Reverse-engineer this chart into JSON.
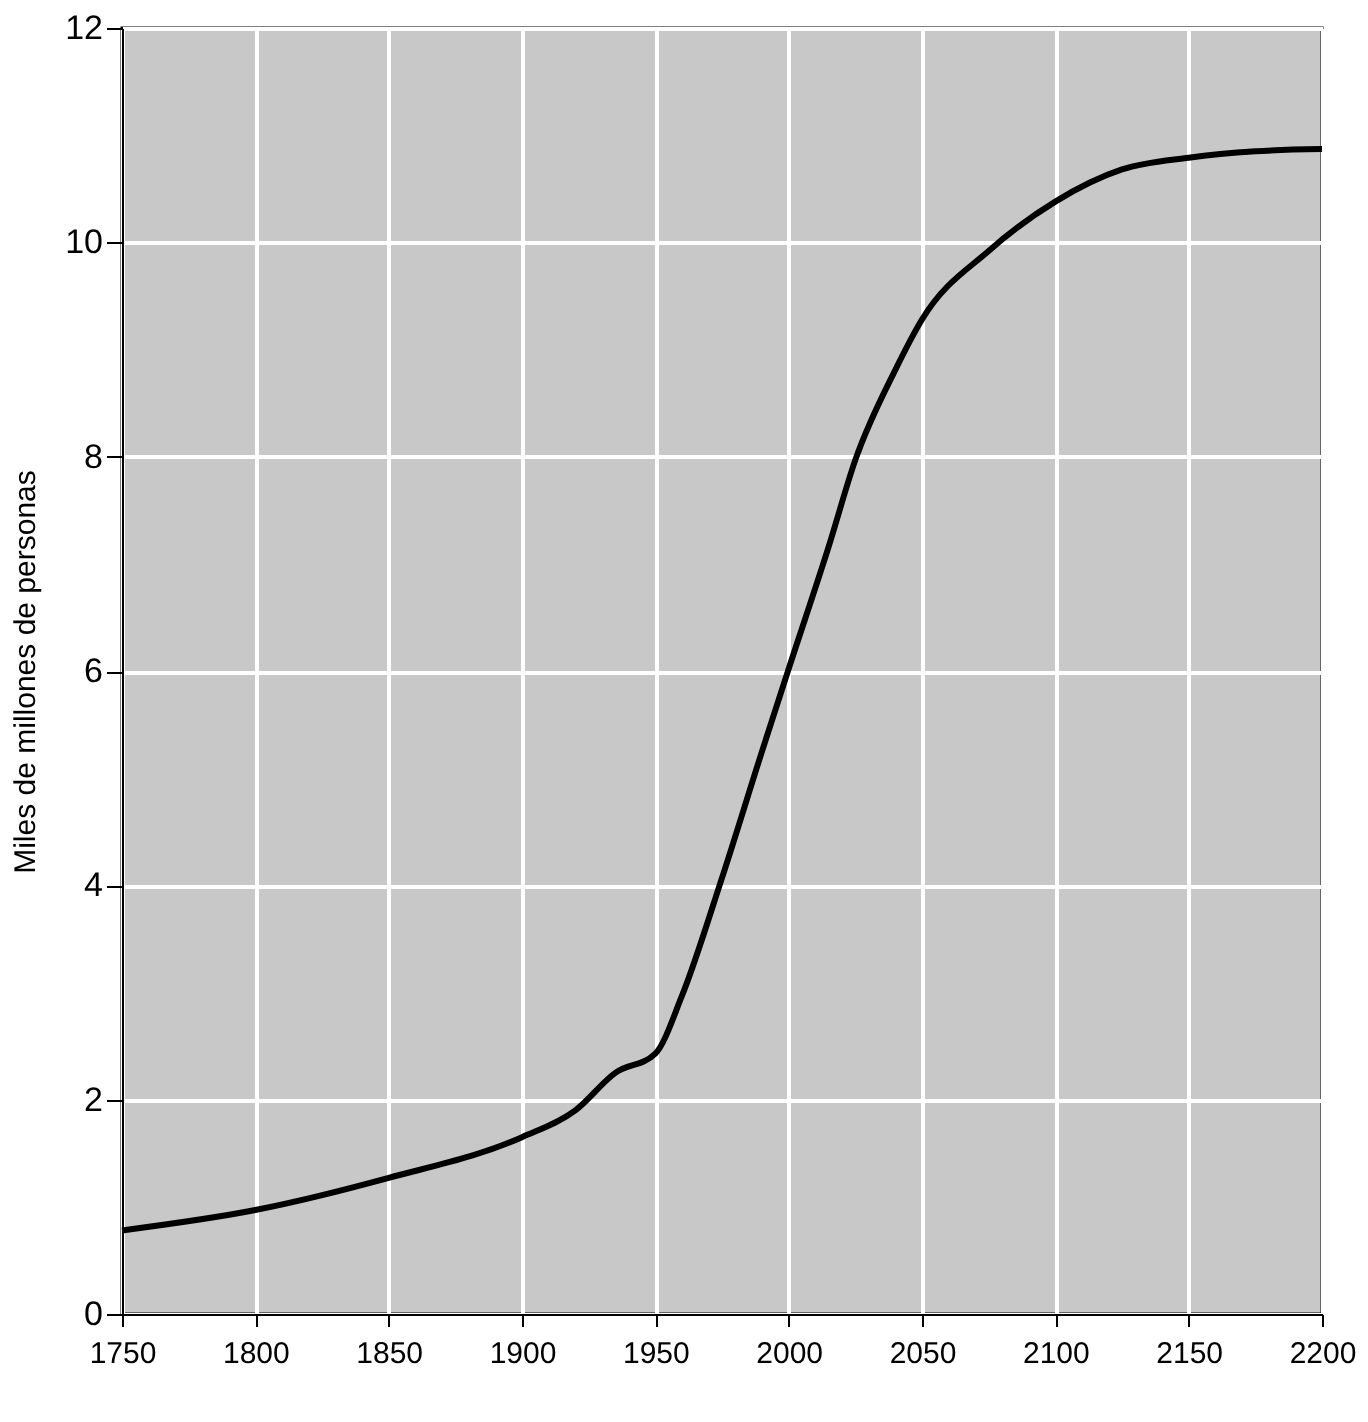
{
  "chart_data": {
    "type": "line",
    "ylabel": "Miles de millones de personas",
    "x": [
      1750,
      1800,
      1850,
      1900,
      1920,
      1935,
      1950,
      1960,
      1975,
      1990,
      2000,
      2015,
      2025,
      2040,
      2050,
      2075,
      2100,
      2125,
      2150,
      2175,
      2200
    ],
    "series": [
      {
        "color": "#000000",
        "values": [
          0.78,
          0.97,
          1.27,
          1.65,
          1.9,
          2.25,
          2.43,
          2.97,
          4.07,
          5.25,
          6.02,
          7.16,
          7.97,
          8.81,
          9.28,
          9.92,
          10.38,
          10.68,
          10.79,
          10.85,
          10.87
        ]
      }
    ],
    "xlim": [
      1750,
      2200
    ],
    "xticks": [
      1750,
      1800,
      1850,
      1900,
      1950,
      2000,
      2050,
      2100,
      2150,
      2200
    ],
    "ylim": [
      0,
      12
    ],
    "yticks": [
      0,
      2,
      4,
      6,
      8,
      10,
      12
    ],
    "grid": true,
    "marker": "none",
    "line_style": "solid"
  }
}
